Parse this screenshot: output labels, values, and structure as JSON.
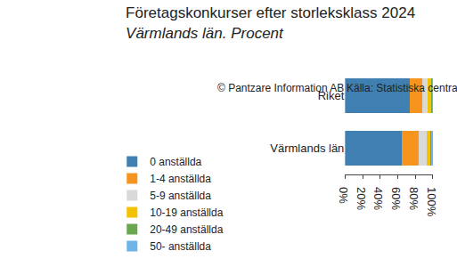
{
  "chart_data": {
    "type": "bar",
    "title": "Företagskonkurser efter storleksklass 2024",
    "subtitle": "Värmlands län. Procent",
    "orientation": "horizontal",
    "stacked": true,
    "grid": false,
    "legend": "bottom",
    "categories": [
      "Riket",
      "Värmlands län"
    ],
    "series": [
      {
        "name": "0 anställda",
        "color": "#3f7fb1",
        "values": [
          73.6,
          64.6
        ]
      },
      {
        "name": "1-4 anställda",
        "color": "#f7941d",
        "values": [
          14.5,
          19.2
        ]
      },
      {
        "name": "5-9 anställda",
        "color": "#d9d9d9",
        "values": [
          5.8,
          8.7
        ]
      },
      {
        "name": "10-19 anställda",
        "color": "#f5c200",
        "values": [
          3.8,
          4.0
        ]
      },
      {
        "name": "20-49 anställda",
        "color": "#6aa84f",
        "values": [
          1.7,
          1.8
        ]
      },
      {
        "name": "50- anställda",
        "color": "#6fb4e8",
        "values": [
          0.6,
          1.7
        ]
      }
    ],
    "xlim": [
      0,
      100
    ],
    "xticks": [
      {
        "value": 0,
        "label": "0%"
      },
      {
        "value": 20,
        "label": "20%"
      },
      {
        "value": 40,
        "label": "40%"
      },
      {
        "value": 60,
        "label": "60%"
      },
      {
        "value": 80,
        "label": "80%"
      },
      {
        "value": 100,
        "label": "100%"
      }
    ],
    "annotations": [
      "Källa: Statistiska centralbyrån",
      "© Pantzare Information AB"
    ]
  }
}
